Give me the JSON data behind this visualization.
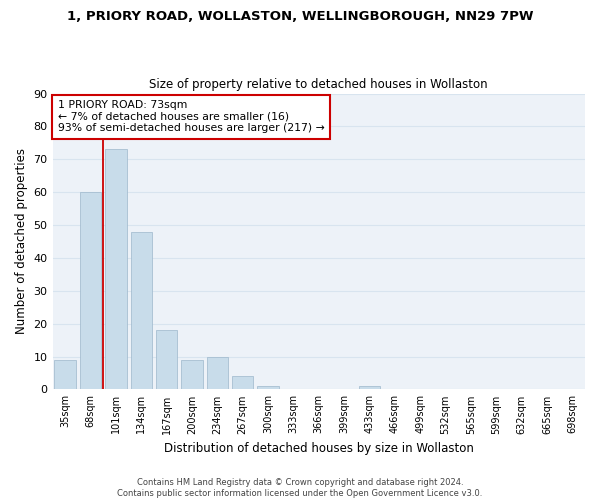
{
  "title1": "1, PRIORY ROAD, WOLLASTON, WELLINGBOROUGH, NN29 7PW",
  "title2": "Size of property relative to detached houses in Wollaston",
  "xlabel": "Distribution of detached houses by size in Wollaston",
  "ylabel": "Number of detached properties",
  "categories": [
    "35sqm",
    "68sqm",
    "101sqm",
    "134sqm",
    "167sqm",
    "200sqm",
    "234sqm",
    "267sqm",
    "300sqm",
    "333sqm",
    "366sqm",
    "399sqm",
    "433sqm",
    "466sqm",
    "499sqm",
    "532sqm",
    "565sqm",
    "599sqm",
    "632sqm",
    "665sqm",
    "698sqm"
  ],
  "values": [
    9,
    60,
    73,
    48,
    18,
    9,
    10,
    4,
    1,
    0,
    0,
    0,
    1,
    0,
    0,
    0,
    0,
    0,
    0,
    0,
    0
  ],
  "bar_color": "#c8dcea",
  "bar_edge_color": "#9db8cc",
  "grid_color": "#d8e4ef",
  "background_color": "#edf2f8",
  "vline_x": 1.5,
  "vline_color": "#cc0000",
  "annotation_text": "1 PRIORY ROAD: 73sqm\n← 7% of detached houses are smaller (16)\n93% of semi-detached houses are larger (217) →",
  "annotation_box_color": "white",
  "annotation_box_edge_color": "#cc0000",
  "footer": "Contains HM Land Registry data © Crown copyright and database right 2024.\nContains public sector information licensed under the Open Government Licence v3.0.",
  "ylim": [
    0,
    90
  ],
  "yticks": [
    0,
    10,
    20,
    30,
    40,
    50,
    60,
    70,
    80,
    90
  ]
}
